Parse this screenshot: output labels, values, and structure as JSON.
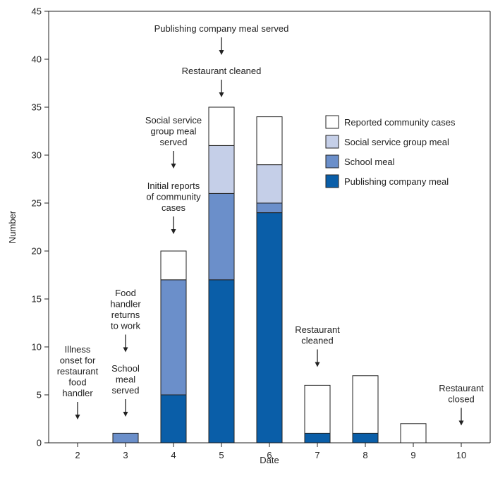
{
  "chart_data": {
    "type": "bar",
    "stacked": true,
    "xlabel": "Date",
    "ylabel": "Number",
    "ylim": [
      0,
      45
    ],
    "yticks": [
      0,
      5,
      10,
      15,
      20,
      25,
      30,
      35,
      40,
      45
    ],
    "categories": [
      "2",
      "3",
      "4",
      "5",
      "6",
      "7",
      "8",
      "9",
      "10"
    ],
    "grid": false,
    "legend_position": "top-right",
    "series": [
      {
        "name": "Publishing company meal",
        "color": "#0a5ea8",
        "values": [
          0,
          0,
          5,
          17,
          24,
          1,
          1,
          0,
          0
        ]
      },
      {
        "name": "School meal",
        "color": "#6b8fca",
        "values": [
          0,
          1,
          12,
          9,
          1,
          0,
          0,
          0,
          0
        ]
      },
      {
        "name": "Social service group meal",
        "color": "#c5cfe8",
        "values": [
          0,
          0,
          0,
          5,
          4,
          0,
          0,
          0,
          0
        ]
      },
      {
        "name": "Reported community cases",
        "color": "#ffffff",
        "values": [
          0,
          0,
          3,
          4,
          5,
          5,
          6,
          2,
          0
        ]
      }
    ],
    "legend_order": [
      "Reported community cases",
      "Social service group meal",
      "School meal",
      "Publishing company meal"
    ],
    "annotations": [
      {
        "category": "2",
        "lines": [
          "Illness",
          "onset for",
          "restaurant",
          "food",
          "handler"
        ]
      },
      {
        "category": "3",
        "lines": [
          "Food",
          "handler",
          "returns",
          "to work"
        ]
      },
      {
        "category": "3",
        "lines": [
          "School",
          "meal",
          "served"
        ]
      },
      {
        "category": "4",
        "lines": [
          "Social service",
          "group meal",
          "served"
        ]
      },
      {
        "category": "4",
        "lines": [
          "Initial reports",
          "of community",
          "cases"
        ]
      },
      {
        "category": "5",
        "lines": [
          "Publishing company meal served"
        ]
      },
      {
        "category": "5",
        "lines": [
          "Restaurant cleaned"
        ]
      },
      {
        "category": "7",
        "lines": [
          "Restaurant",
          "cleaned"
        ]
      },
      {
        "category": "10",
        "lines": [
          "Restaurant",
          "closed"
        ]
      }
    ]
  }
}
